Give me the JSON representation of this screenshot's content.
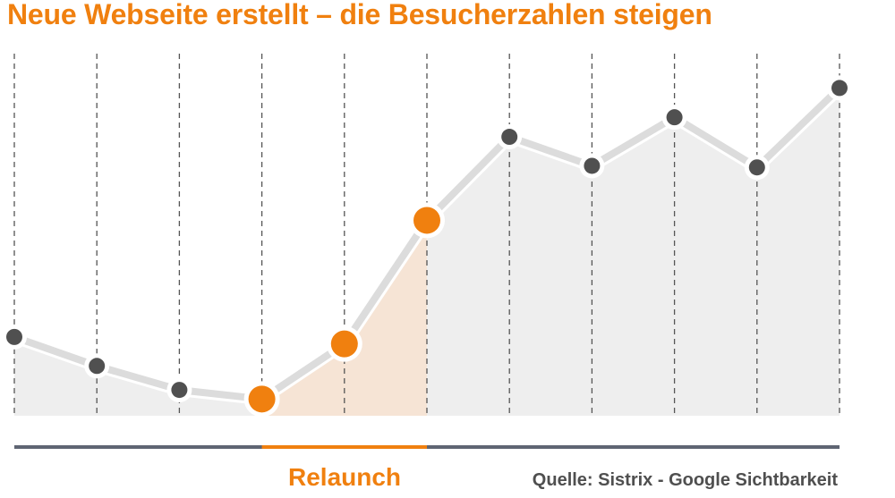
{
  "title": "Neue Webseite erstellt – die Besucherzahlen steigen",
  "colors": {
    "accent": "#f0800f",
    "text_dark": "#4f4f4f",
    "point_default": "#505050",
    "line": "#dcdcdc",
    "area": "#eeeeee",
    "area_highlight": "#f6e4d5",
    "grid": "#555555",
    "baseline": "#5f6573"
  },
  "chart_data": {
    "type": "line",
    "title": "Neue Webseite erstellt – die Besucherzahlen steigen",
    "xlabel": "",
    "ylabel": "",
    "grid": "vertical dashed",
    "series": [
      {
        "values": [
          25,
          15.8,
          8.2,
          5.3,
          22.8,
          62,
          88.5,
          79.3,
          94.7,
          78.8,
          104
        ]
      }
    ],
    "highlight_points": [
      3,
      4,
      5
    ],
    "highlight_range": [
      3,
      5
    ],
    "ylim": [
      0,
      120
    ]
  },
  "annotations": {
    "relaunch": "Relaunch",
    "source": "Quelle: Sistrix - Google Sichtbarkeit"
  }
}
